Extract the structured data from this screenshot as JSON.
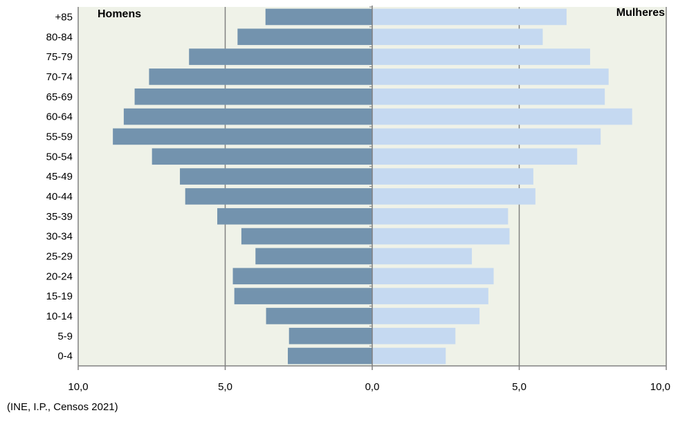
{
  "chart_data": {
    "type": "bar",
    "orientation": "horizontal",
    "layout": "population-pyramid",
    "categories": [
      "+85",
      "80-84",
      "75-79",
      "70-74",
      "65-69",
      "60-64",
      "55-59",
      "50-54",
      "45-49",
      "40-44",
      "35-39",
      "30-34",
      "25-29",
      "20-24",
      "15-19",
      "10-14",
      "5-9",
      "0-4"
    ],
    "series": [
      {
        "name": "Homens",
        "side": "left",
        "color": "#7393ae",
        "values": [
          3.63,
          4.58,
          6.23,
          7.59,
          8.08,
          8.45,
          8.82,
          7.49,
          6.54,
          6.36,
          5.27,
          4.45,
          3.97,
          4.74,
          4.69,
          3.61,
          2.83,
          2.87
        ]
      },
      {
        "name": "Mulheres",
        "side": "right",
        "color": "#c5d9f1",
        "values": [
          6.61,
          5.8,
          7.41,
          8.04,
          7.91,
          8.84,
          7.77,
          6.97,
          5.48,
          5.55,
          4.62,
          4.67,
          3.39,
          4.13,
          3.95,
          3.65,
          2.83,
          2.5
        ]
      }
    ],
    "x_range": [
      -10,
      10
    ],
    "x_ticks": [
      -10,
      -5,
      0,
      5,
      10
    ],
    "x_tick_labels": [
      "10,0",
      "5,0",
      "0,0",
      "5,0",
      "10,0"
    ],
    "grid": "vertical",
    "plot_background": "#eff2e8",
    "title": "",
    "xlabel": "",
    "ylabel": ""
  },
  "source_note": "(INE, I.P., Censos 2021)"
}
